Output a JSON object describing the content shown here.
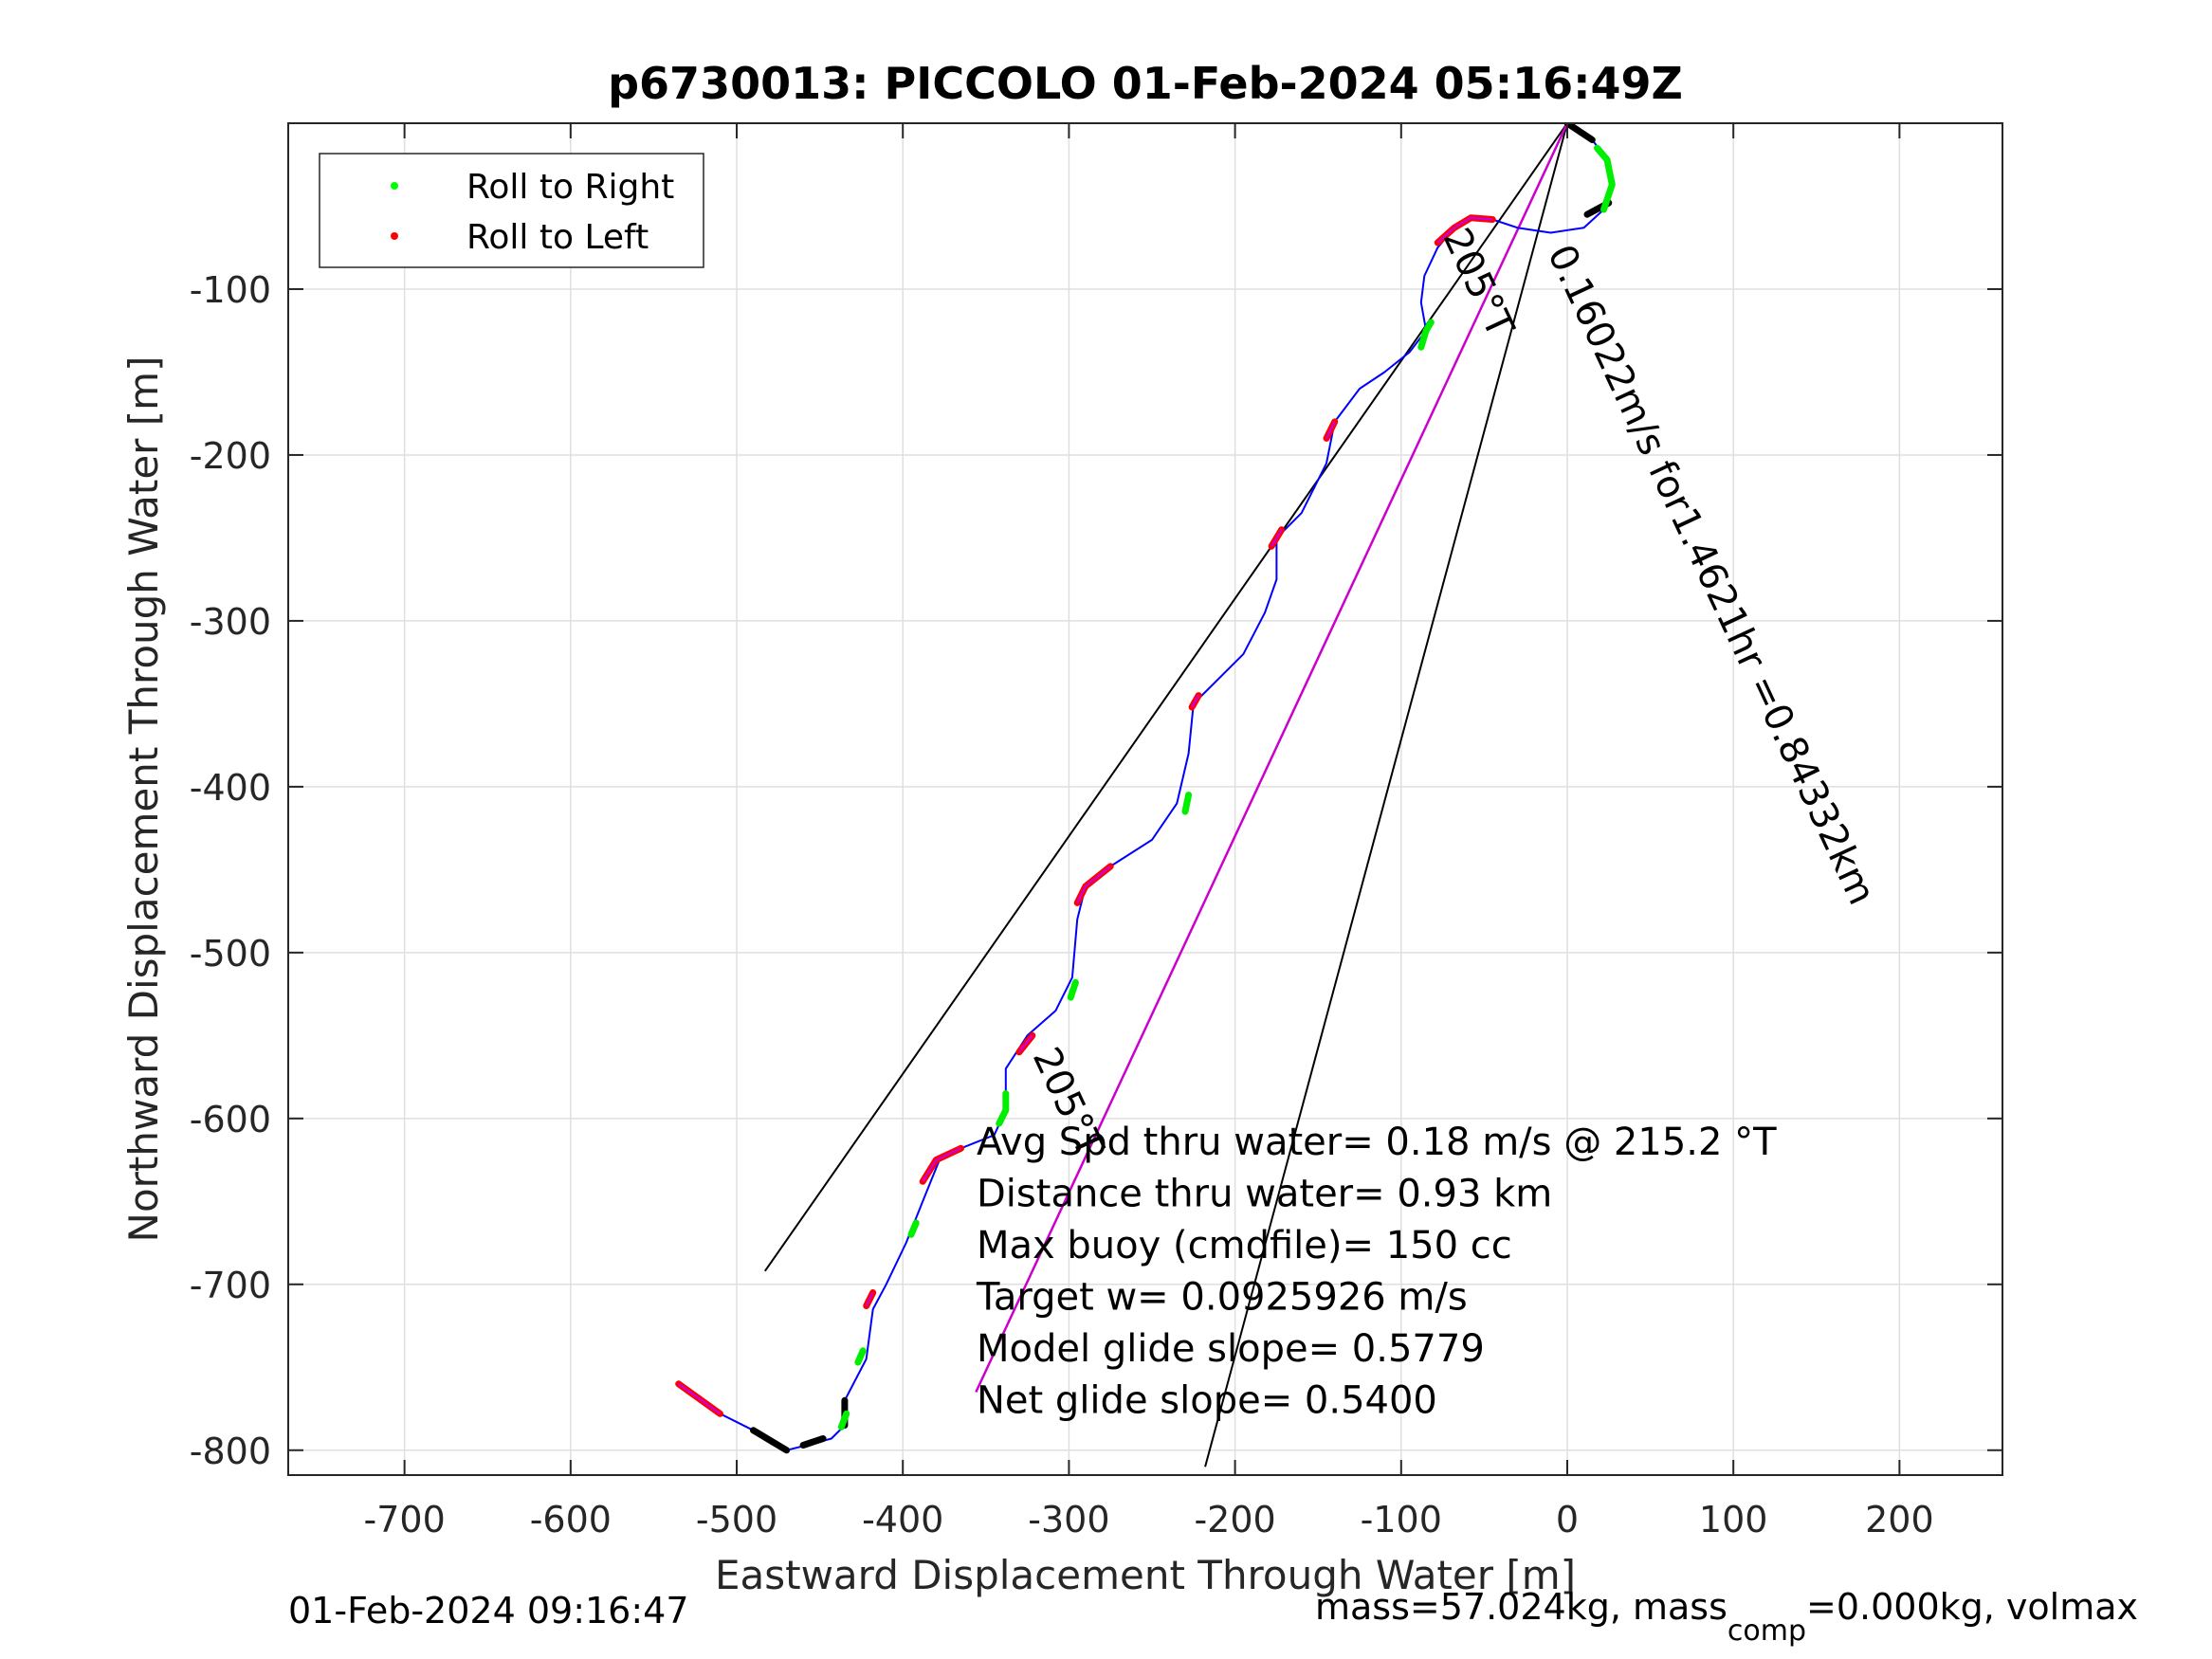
{
  "chart_data": {
    "type": "line",
    "title": "p6730013: PICCOLO 01-Feb-2024 05:16:49Z",
    "xlabel": "Eastward Displacement Through Water [m]",
    "ylabel": "Northward Displacement Through Water [m]",
    "xlim": [
      -770,
      262
    ],
    "ylim": [
      -815,
      0
    ],
    "xticks": [
      -700,
      -600,
      -500,
      -400,
      -300,
      -200,
      -100,
      0,
      100,
      200
    ],
    "yticks": [
      -100,
      -200,
      -300,
      -400,
      -500,
      -600,
      -700,
      -800
    ],
    "grid": true,
    "legend_position": "top-left",
    "legend": [
      {
        "label": "Roll to Right",
        "color": "#00ff00"
      },
      {
        "label": "Roll to Left",
        "color": "#ff0000"
      }
    ],
    "track": {
      "color": "#0000ff",
      "points": [
        [
          0,
          0
        ],
        [
          15,
          -10
        ],
        [
          24,
          -22
        ],
        [
          27,
          -37
        ],
        [
          22,
          -52
        ],
        [
          10,
          -63
        ],
        [
          -10,
          -66
        ],
        [
          -30,
          -63
        ],
        [
          -45,
          -58
        ],
        [
          -58,
          -57
        ],
        [
          -68,
          -63
        ],
        [
          -78,
          -75
        ],
        [
          -86,
          -92
        ],
        [
          -88,
          -108
        ],
        [
          -85,
          -125
        ],
        [
          -95,
          -138
        ],
        [
          -110,
          -150
        ],
        [
          -125,
          -160
        ],
        [
          -140,
          -180
        ],
        [
          -145,
          -205
        ],
        [
          -160,
          -235
        ],
        [
          -175,
          -250
        ],
        [
          -175,
          -275
        ],
        [
          -182,
          -295
        ],
        [
          -195,
          -320
        ],
        [
          -215,
          -340
        ],
        [
          -225,
          -350
        ],
        [
          -228,
          -380
        ],
        [
          -235,
          -410
        ],
        [
          -250,
          -432
        ],
        [
          -275,
          -448
        ],
        [
          -290,
          -460
        ],
        [
          -295,
          -480
        ],
        [
          -298,
          -515
        ],
        [
          -308,
          -535
        ],
        [
          -325,
          -550
        ],
        [
          -338,
          -570
        ],
        [
          -338,
          -595
        ],
        [
          -345,
          -610
        ],
        [
          -365,
          -618
        ],
        [
          -378,
          -625
        ],
        [
          -388,
          -650
        ],
        [
          -398,
          -675
        ],
        [
          -410,
          -700
        ],
        [
          -418,
          -715
        ],
        [
          -422,
          -745
        ],
        [
          -435,
          -770
        ],
        [
          -435,
          -785
        ],
        [
          -443,
          -793
        ],
        [
          -458,
          -797
        ],
        [
          -470,
          -800
        ],
        [
          -490,
          -788
        ],
        [
          -510,
          -778
        ],
        [
          -535,
          -760
        ]
      ]
    },
    "roll_right_segments": [
      [
        [
          18,
          -15
        ],
        [
          24,
          -22
        ],
        [
          27,
          -37
        ],
        [
          22,
          -52
        ]
      ],
      [
        [
          -82,
          -120
        ],
        [
          -85,
          -125
        ],
        [
          -88,
          -135
        ]
      ],
      [
        [
          -228,
          -405
        ],
        [
          -230,
          -415
        ]
      ],
      [
        [
          -296,
          -518
        ],
        [
          -299,
          -527
        ]
      ],
      [
        [
          -338,
          -585
        ],
        [
          -338,
          -595
        ],
        [
          -342,
          -603
        ]
      ],
      [
        [
          -392,
          -663
        ],
        [
          -395,
          -670
        ]
      ],
      [
        [
          -424,
          -740
        ],
        [
          -427,
          -747
        ]
      ],
      [
        [
          -434,
          -778
        ],
        [
          -437,
          -786
        ]
      ]
    ],
    "roll_left_segments": [
      [
        [
          -78,
          -72
        ],
        [
          -68,
          -63
        ],
        [
          -58,
          -57
        ],
        [
          -45,
          -58
        ]
      ],
      [
        [
          -140,
          -180
        ],
        [
          -145,
          -190
        ]
      ],
      [
        [
          -172,
          -245
        ],
        [
          -178,
          -255
        ]
      ],
      [
        [
          -222,
          -345
        ],
        [
          -226,
          -352
        ]
      ],
      [
        [
          -275,
          -448
        ],
        [
          -290,
          -460
        ],
        [
          -295,
          -470
        ]
      ],
      [
        [
          -322,
          -550
        ],
        [
          -330,
          -560
        ]
      ],
      [
        [
          -365,
          -618
        ],
        [
          -380,
          -625
        ],
        [
          -388,
          -638
        ]
      ],
      [
        [
          -418,
          -705
        ],
        [
          -422,
          -713
        ]
      ],
      [
        [
          -510,
          -778
        ],
        [
          -535,
          -760
        ]
      ]
    ],
    "black_segments": [
      [
        [
          0,
          0
        ],
        [
          15,
          -10
        ]
      ],
      [
        [
          12,
          -55
        ],
        [
          25,
          -48
        ]
      ],
      [
        [
          -435,
          -770
        ],
        [
          -435,
          -785
        ]
      ],
      [
        [
          -448,
          -793
        ],
        [
          -460,
          -797
        ]
      ],
      [
        [
          -470,
          -800
        ],
        [
          -490,
          -788
        ]
      ]
    ],
    "cone_lines": [
      {
        "from": [
          0,
          0
        ],
        "to": [
          -483,
          -692
        ],
        "color": "#000000"
      },
      {
        "from": [
          0,
          0
        ],
        "to": [
          -218,
          -810
        ],
        "color": "#000000"
      }
    ],
    "mean_heading_line": {
      "from": [
        0,
        0
      ],
      "to": [
        -356,
        -765
      ],
      "color": "#cc00cc"
    },
    "rotated_labels": [
      {
        "text": "205°T",
        "x": -75,
        "y": -68
      },
      {
        "text": "0.16022m/s for1.4621hr =0.84332km",
        "x": -12,
        "y": -78
      },
      {
        "text": "205°T",
        "x": -322,
        "y": -562
      }
    ],
    "annotations": [
      "Avg Spd thru water=  0.18 m/s @ 215.2 °T",
      "Distance thru water=  0.93 km",
      "Max buoy (cmdfile)= 150 cc",
      "Target w= 0.0925926 m/s",
      "Model glide slope= 0.5779",
      "Net glide slope= 0.5400"
    ]
  },
  "footer": {
    "timestamp": "01-Feb-2024 09:16:47",
    "mass_prefix": "mass=57.024kg, mass",
    "mass_sub": "comp",
    "mass_suffix": "=0.000kg, volmax"
  }
}
